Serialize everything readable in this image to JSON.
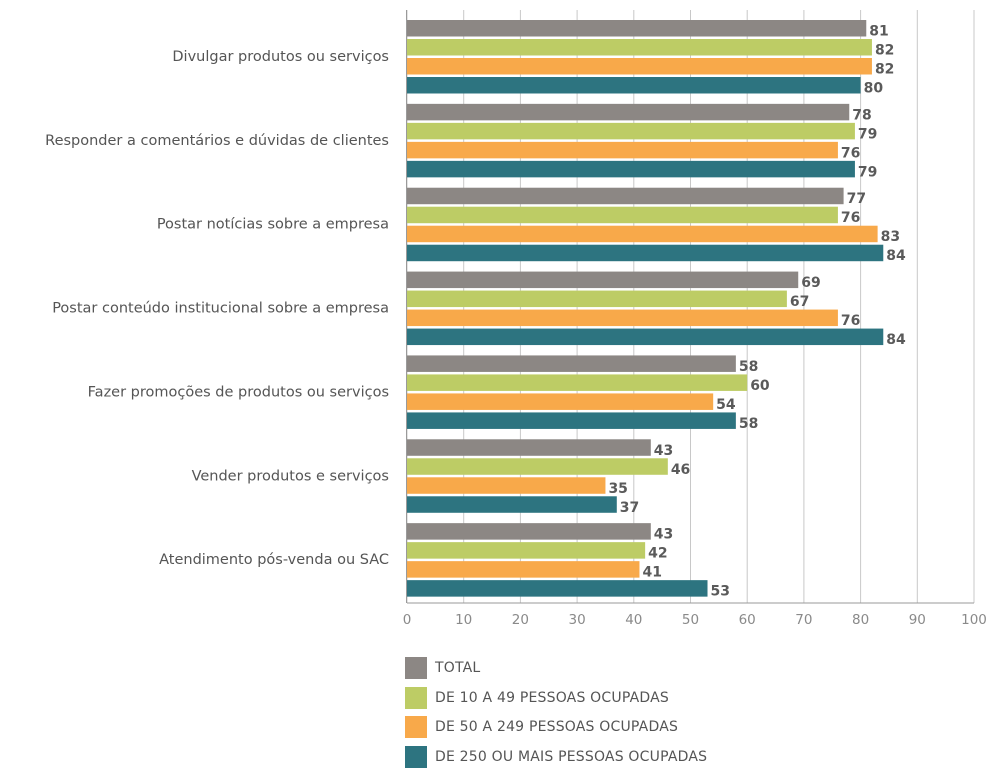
{
  "chart_data": {
    "type": "bar",
    "orientation": "horizontal",
    "categories": [
      "Divulgar produtos ou serviços",
      "Responder a comentários e dúvidas de clientes",
      "Postar notícias sobre a empresa",
      "Postar conteúdo institucional sobre a empresa",
      "Fazer promoções de produtos ou serviços",
      "Vender produtos e serviços",
      "Atendimento pós-venda ou SAC"
    ],
    "series": [
      {
        "name": "TOTAL",
        "color": "#8c8784",
        "values": [
          81,
          78,
          77,
          69,
          58,
          43,
          43
        ]
      },
      {
        "name": "DE 10 A 49 PESSOAS OCUPADAS",
        "color": "#bdcc65",
        "values": [
          82,
          79,
          76,
          67,
          60,
          46,
          42
        ]
      },
      {
        "name": "DE 50 A 249 PESSOAS OCUPADAS",
        "color": "#f8a94a",
        "values": [
          82,
          76,
          83,
          76,
          54,
          35,
          41
        ]
      },
      {
        "name": "DE 250 OU MAIS PESSOAS OCUPADAS",
        "color": "#2d7480",
        "values": [
          80,
          79,
          84,
          84,
          58,
          37,
          53
        ]
      }
    ],
    "xlim": [
      0,
      100
    ],
    "xticks": [
      "0",
      "10",
      "20",
      "30",
      "40",
      "50",
      "60",
      "70",
      "80",
      "90",
      "100"
    ],
    "grid": true,
    "legend_position": "bottom",
    "data_labels": true
  }
}
